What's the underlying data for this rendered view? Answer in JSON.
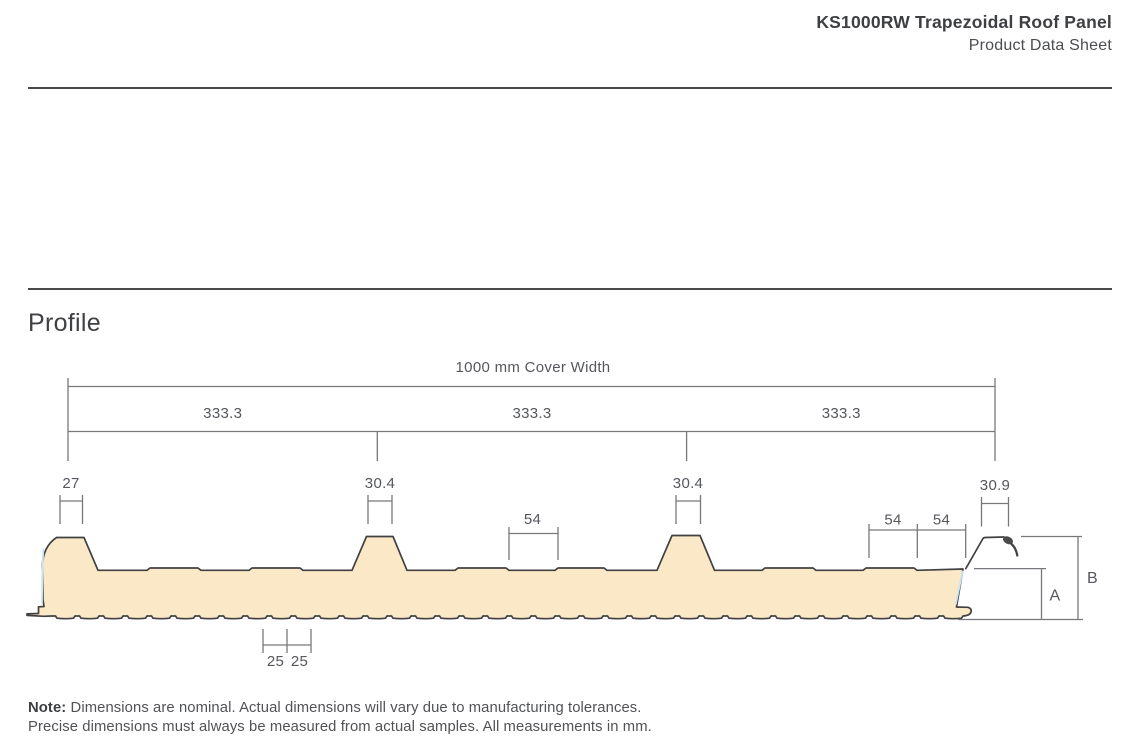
{
  "header": {
    "title": "KS1000RW Trapezoidal Roof Panel",
    "subtitle": "Product Data Sheet"
  },
  "section": {
    "title": "Profile"
  },
  "diagram": {
    "cover_width_label": "1000 mm Cover Width",
    "segment_dims": [
      "333.3",
      "333.3",
      "333.3"
    ],
    "rib_dims": [
      "27",
      "30.4",
      "30.4",
      "30.9"
    ],
    "flat_dim_mid": "54",
    "flat_dims_right": [
      "54",
      "54"
    ],
    "bottom_pitch_dims": [
      "25",
      "25"
    ],
    "height_label_a": "A",
    "height_label_b": "B",
    "colors": {
      "panel_fill": "#FBE8C6",
      "outline": "#414042",
      "dimension": "#77787B",
      "dim_text": "#55575C",
      "edge_highlight": "#C7E5F3",
      "text_dark": "#3E3F42",
      "text_body": "#515256"
    }
  },
  "note": {
    "label": "Note:",
    "line1": "Dimensions are nominal. Actual dimensions will vary due to manufacturing tolerances.",
    "line2": "Precise dimensions must always be measured from actual samples. All measurements in mm."
  }
}
